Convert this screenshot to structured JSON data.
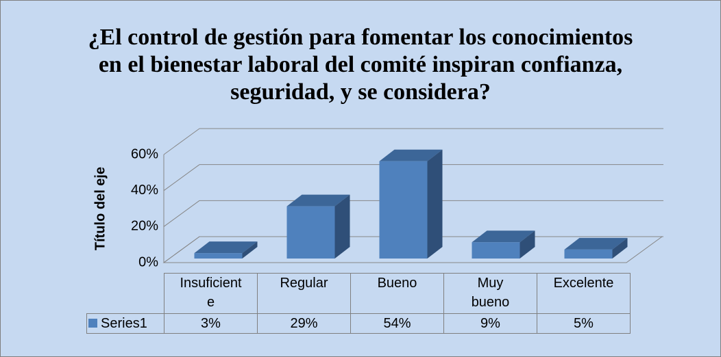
{
  "chart_data": {
    "type": "bar3d",
    "title": "¿El control de gestión para fomentar los conocimientos en el bienestar laboral del comité inspiran confianza, seguridad, y se considera?",
    "y_axis_label": "Título del eje",
    "categories": [
      "Insuficiente",
      "Regular",
      "Bueno",
      "Muy bueno",
      "Excelente"
    ],
    "series": [
      {
        "name": "Series1",
        "color": "#4f81bd",
        "values": [
          3,
          29,
          54,
          9,
          5
        ],
        "value_labels": [
          "3%",
          "29%",
          "54%",
          "9%",
          "5%"
        ]
      }
    ],
    "ylim": [
      0,
      60
    ],
    "yticks": [
      {
        "value": 0,
        "label": "0%"
      },
      {
        "value": 20,
        "label": "20%"
      },
      {
        "value": 40,
        "label": "40%"
      },
      {
        "value": 60,
        "label": "60%"
      }
    ],
    "grid": true
  }
}
